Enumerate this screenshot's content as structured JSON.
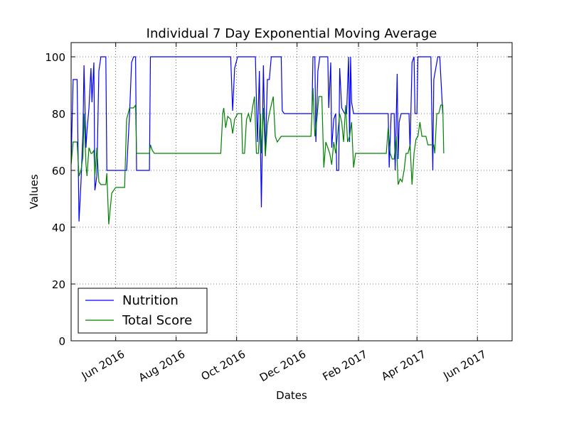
{
  "chart_data": {
    "type": "line",
    "title": "Individual 7 Day Exponential Moving Average",
    "xlabel": "Dates",
    "ylabel": "Values",
    "xlim": [
      "2016-04-17",
      "2017-07-06"
    ],
    "ylim": [
      0,
      105
    ],
    "yticks": [
      0,
      20,
      40,
      60,
      80,
      100
    ],
    "xticks": [
      {
        "date": "2016-06-01",
        "label": "Jun 2016"
      },
      {
        "date": "2016-08-01",
        "label": "Aug 2016"
      },
      {
        "date": "2016-10-01",
        "label": "Oct 2016"
      },
      {
        "date": "2016-12-01",
        "label": "Dec 2016"
      },
      {
        "date": "2017-02-01",
        "label": "Feb 2017"
      },
      {
        "date": "2017-04-01",
        "label": "Apr 2017"
      },
      {
        "date": "2017-06-01",
        "label": "Jun 2017"
      }
    ],
    "grid": true,
    "legend": "lower-left",
    "series": [
      {
        "name": "Nutrition",
        "color": "#0000ff",
        "points": [
          [
            "2016-04-17",
            63
          ],
          [
            "2016-04-19",
            92
          ],
          [
            "2016-04-23",
            92
          ],
          [
            "2016-04-25",
            42
          ],
          [
            "2016-04-27",
            56
          ],
          [
            "2016-04-29",
            74
          ],
          [
            "2016-04-30",
            97
          ],
          [
            "2016-05-02",
            68
          ],
          [
            "2016-05-03",
            74
          ],
          [
            "2016-05-05",
            82
          ],
          [
            "2016-05-07",
            96
          ],
          [
            "2016-05-08",
            84
          ],
          [
            "2016-05-10",
            98
          ],
          [
            "2016-05-11",
            53
          ],
          [
            "2016-05-13",
            58
          ],
          [
            "2016-05-15",
            95
          ],
          [
            "2016-05-17",
            100
          ],
          [
            "2016-05-22",
            100
          ],
          [
            "2016-05-23",
            60
          ],
          [
            "2016-06-12",
            60
          ],
          [
            "2016-06-15",
            80
          ],
          [
            "2016-06-17",
            98
          ],
          [
            "2016-06-19",
            100
          ],
          [
            "2016-06-21",
            100
          ],
          [
            "2016-06-22",
            60
          ],
          [
            "2016-07-05",
            60
          ],
          [
            "2016-07-06",
            100
          ],
          [
            "2016-09-25",
            100
          ],
          [
            "2016-09-27",
            81
          ],
          [
            "2016-09-29",
            96
          ],
          [
            "2016-10-02",
            100
          ],
          [
            "2016-10-20",
            100
          ],
          [
            "2016-10-22",
            70
          ],
          [
            "2016-10-24",
            95
          ],
          [
            "2016-10-25",
            70
          ],
          [
            "2016-10-26",
            47
          ],
          [
            "2016-10-28",
            97
          ],
          [
            "2016-10-30",
            65
          ],
          [
            "2016-11-01",
            92
          ],
          [
            "2016-11-03",
            92
          ],
          [
            "2016-11-05",
            100
          ],
          [
            "2016-11-15",
            100
          ],
          [
            "2016-11-16",
            81
          ],
          [
            "2016-11-18",
            80
          ],
          [
            "2016-12-16",
            80
          ],
          [
            "2016-12-17",
            100
          ],
          [
            "2016-12-19",
            100
          ],
          [
            "2016-12-20",
            70
          ],
          [
            "2016-12-22",
            95
          ],
          [
            "2016-12-24",
            100
          ],
          [
            "2017-01-01",
            100
          ],
          [
            "2017-01-02",
            82
          ],
          [
            "2017-01-04",
            98
          ],
          [
            "2017-01-05",
            68
          ],
          [
            "2017-01-07",
            78
          ],
          [
            "2017-01-09",
            80
          ],
          [
            "2017-01-10",
            60
          ],
          [
            "2017-01-12",
            60
          ],
          [
            "2017-01-13",
            96
          ],
          [
            "2017-01-15",
            82
          ],
          [
            "2017-01-18",
            80
          ],
          [
            "2017-01-20",
            80
          ],
          [
            "2017-01-22",
            100
          ],
          [
            "2017-01-23",
            70
          ],
          [
            "2017-01-24",
            100
          ],
          [
            "2017-01-25",
            84
          ],
          [
            "2017-01-27",
            80
          ],
          [
            "2017-03-03",
            80
          ],
          [
            "2017-03-04",
            61
          ],
          [
            "2017-03-06",
            80
          ],
          [
            "2017-03-09",
            80
          ],
          [
            "2017-03-10",
            60
          ],
          [
            "2017-03-12",
            94
          ],
          [
            "2017-03-13",
            64
          ],
          [
            "2017-03-14",
            77
          ],
          [
            "2017-03-16",
            80
          ],
          [
            "2017-03-24",
            80
          ],
          [
            "2017-03-25",
            67
          ],
          [
            "2017-03-27",
            98
          ],
          [
            "2017-03-29",
            100
          ],
          [
            "2017-03-30",
            80
          ],
          [
            "2017-04-01",
            80
          ],
          [
            "2017-04-02",
            100
          ],
          [
            "2017-04-15",
            100
          ],
          [
            "2017-04-17",
            60
          ],
          [
            "2017-04-18",
            92
          ],
          [
            "2017-04-22",
            100
          ],
          [
            "2017-04-24",
            100
          ],
          [
            "2017-04-27",
            80
          ]
        ]
      },
      {
        "name": "Total Score",
        "color": "#008000",
        "points": [
          [
            "2016-04-17",
            62
          ],
          [
            "2016-04-19",
            70
          ],
          [
            "2016-04-23",
            70
          ],
          [
            "2016-04-25",
            58
          ],
          [
            "2016-04-27",
            60
          ],
          [
            "2016-04-29",
            65
          ],
          [
            "2016-04-30",
            80
          ],
          [
            "2016-05-02",
            62
          ],
          [
            "2016-05-03",
            58
          ],
          [
            "2016-05-05",
            68
          ],
          [
            "2016-05-07",
            66
          ],
          [
            "2016-05-08",
            66
          ],
          [
            "2016-05-10",
            67
          ],
          [
            "2016-05-11",
            58
          ],
          [
            "2016-05-13",
            68
          ],
          [
            "2016-05-15",
            56
          ],
          [
            "2016-05-17",
            55
          ],
          [
            "2016-05-22",
            55
          ],
          [
            "2016-05-23",
            59
          ],
          [
            "2016-05-25",
            41
          ],
          [
            "2016-05-28",
            52
          ],
          [
            "2016-06-01",
            54
          ],
          [
            "2016-06-10",
            54
          ],
          [
            "2016-06-12",
            78
          ],
          [
            "2016-06-15",
            82
          ],
          [
            "2016-06-19",
            82
          ],
          [
            "2016-06-21",
            83
          ],
          [
            "2016-06-22",
            66
          ],
          [
            "2016-07-05",
            66
          ],
          [
            "2016-07-06",
            69
          ],
          [
            "2016-07-08",
            67
          ],
          [
            "2016-07-10",
            66
          ],
          [
            "2016-09-15",
            66
          ],
          [
            "2016-09-17",
            80
          ],
          [
            "2016-09-18",
            82
          ],
          [
            "2016-09-20",
            75
          ],
          [
            "2016-09-22",
            79
          ],
          [
            "2016-09-25",
            78
          ],
          [
            "2016-09-27",
            73
          ],
          [
            "2016-09-29",
            78
          ],
          [
            "2016-10-02",
            80
          ],
          [
            "2016-10-06",
            80
          ],
          [
            "2016-10-07",
            66
          ],
          [
            "2016-10-09",
            66
          ],
          [
            "2016-10-11",
            78
          ],
          [
            "2016-10-13",
            80
          ],
          [
            "2016-10-15",
            77
          ],
          [
            "2016-10-17",
            82
          ],
          [
            "2016-10-19",
            86
          ],
          [
            "2016-10-21",
            66
          ],
          [
            "2016-10-23",
            66
          ],
          [
            "2016-10-25",
            80
          ],
          [
            "2016-10-26",
            66
          ],
          [
            "2016-10-28",
            82
          ],
          [
            "2016-10-30",
            65
          ],
          [
            "2016-11-01",
            76
          ],
          [
            "2016-11-03",
            80
          ],
          [
            "2016-11-05",
            83
          ],
          [
            "2016-11-07",
            86
          ],
          [
            "2016-11-09",
            72
          ],
          [
            "2016-11-11",
            70
          ],
          [
            "2016-11-13",
            71
          ],
          [
            "2016-11-15",
            72
          ],
          [
            "2016-12-15",
            72
          ],
          [
            "2016-12-17",
            89
          ],
          [
            "2016-12-19",
            72
          ],
          [
            "2016-12-21",
            78
          ],
          [
            "2016-12-23",
            86
          ],
          [
            "2016-12-26",
            86
          ],
          [
            "2016-12-28",
            61
          ],
          [
            "2016-12-30",
            70
          ],
          [
            "2017-01-01",
            68
          ],
          [
            "2017-01-03",
            66
          ],
          [
            "2017-01-05",
            62
          ],
          [
            "2017-01-07",
            70
          ],
          [
            "2017-01-09",
            66
          ],
          [
            "2017-01-11",
            73
          ],
          [
            "2017-01-13",
            80
          ],
          [
            "2017-01-15",
            77
          ],
          [
            "2017-01-17",
            70
          ],
          [
            "2017-01-19",
            83
          ],
          [
            "2017-01-21",
            70
          ],
          [
            "2017-01-23",
            72
          ],
          [
            "2017-01-25",
            77
          ],
          [
            "2017-01-27",
            61
          ],
          [
            "2017-01-29",
            66
          ],
          [
            "2017-02-01",
            66
          ],
          [
            "2017-03-01",
            66
          ],
          [
            "2017-03-03",
            75
          ],
          [
            "2017-03-05",
            66
          ],
          [
            "2017-03-07",
            64
          ],
          [
            "2017-03-09",
            64
          ],
          [
            "2017-03-11",
            72
          ],
          [
            "2017-03-13",
            55
          ],
          [
            "2017-03-15",
            57
          ],
          [
            "2017-03-17",
            56
          ],
          [
            "2017-03-19",
            60
          ],
          [
            "2017-03-21",
            66
          ],
          [
            "2017-03-23",
            66
          ],
          [
            "2017-03-25",
            69
          ],
          [
            "2017-03-27",
            55
          ],
          [
            "2017-03-29",
            66
          ],
          [
            "2017-03-31",
            71
          ],
          [
            "2017-04-02",
            72
          ],
          [
            "2017-04-04",
            77
          ],
          [
            "2017-04-06",
            72
          ],
          [
            "2017-04-10",
            72
          ],
          [
            "2017-04-12",
            69
          ],
          [
            "2017-04-18",
            69
          ],
          [
            "2017-04-19",
            66
          ],
          [
            "2017-04-21",
            80
          ],
          [
            "2017-04-23",
            80
          ],
          [
            "2017-04-25",
            83
          ],
          [
            "2017-04-27",
            83
          ],
          [
            "2017-04-28",
            66
          ]
        ]
      }
    ]
  }
}
